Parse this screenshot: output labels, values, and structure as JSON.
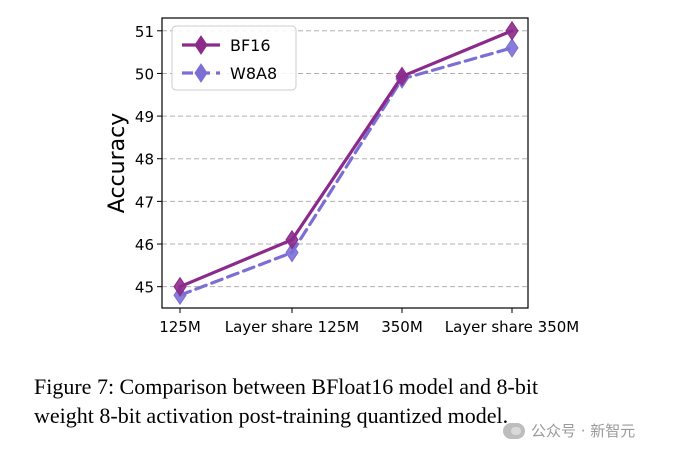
{
  "chart_data": {
    "type": "line",
    "categories": [
      "125M",
      "Layer share 125M",
      "350M",
      "Layer share 350M"
    ],
    "series": [
      {
        "name": "BF16",
        "values": [
          45.0,
          46.1,
          49.93,
          51.0
        ],
        "color": "#8b2a8b",
        "line_style": "solid",
        "marker": "thin-diamond"
      },
      {
        "name": "W8A8",
        "values": [
          44.8,
          45.8,
          49.87,
          50.6
        ],
        "color": "#7b6fd6",
        "line_style": "dashed",
        "marker": "thin-diamond"
      }
    ],
    "ylabel": "Accuracy",
    "xlabel": "",
    "ylim": [
      44.5,
      51.3
    ],
    "yticks": [
      45,
      46,
      47,
      48,
      49,
      50,
      51
    ],
    "grid": "horizontal dashed",
    "legend_position": "top-left"
  },
  "caption": {
    "line1": "Figure 7: Comparison between BFloat16 model and 8-bit",
    "line2": "weight 8-bit activation post-training quantized model."
  },
  "watermark": {
    "text": "公众号 · 新智元",
    "icon": "wechat-icon"
  }
}
